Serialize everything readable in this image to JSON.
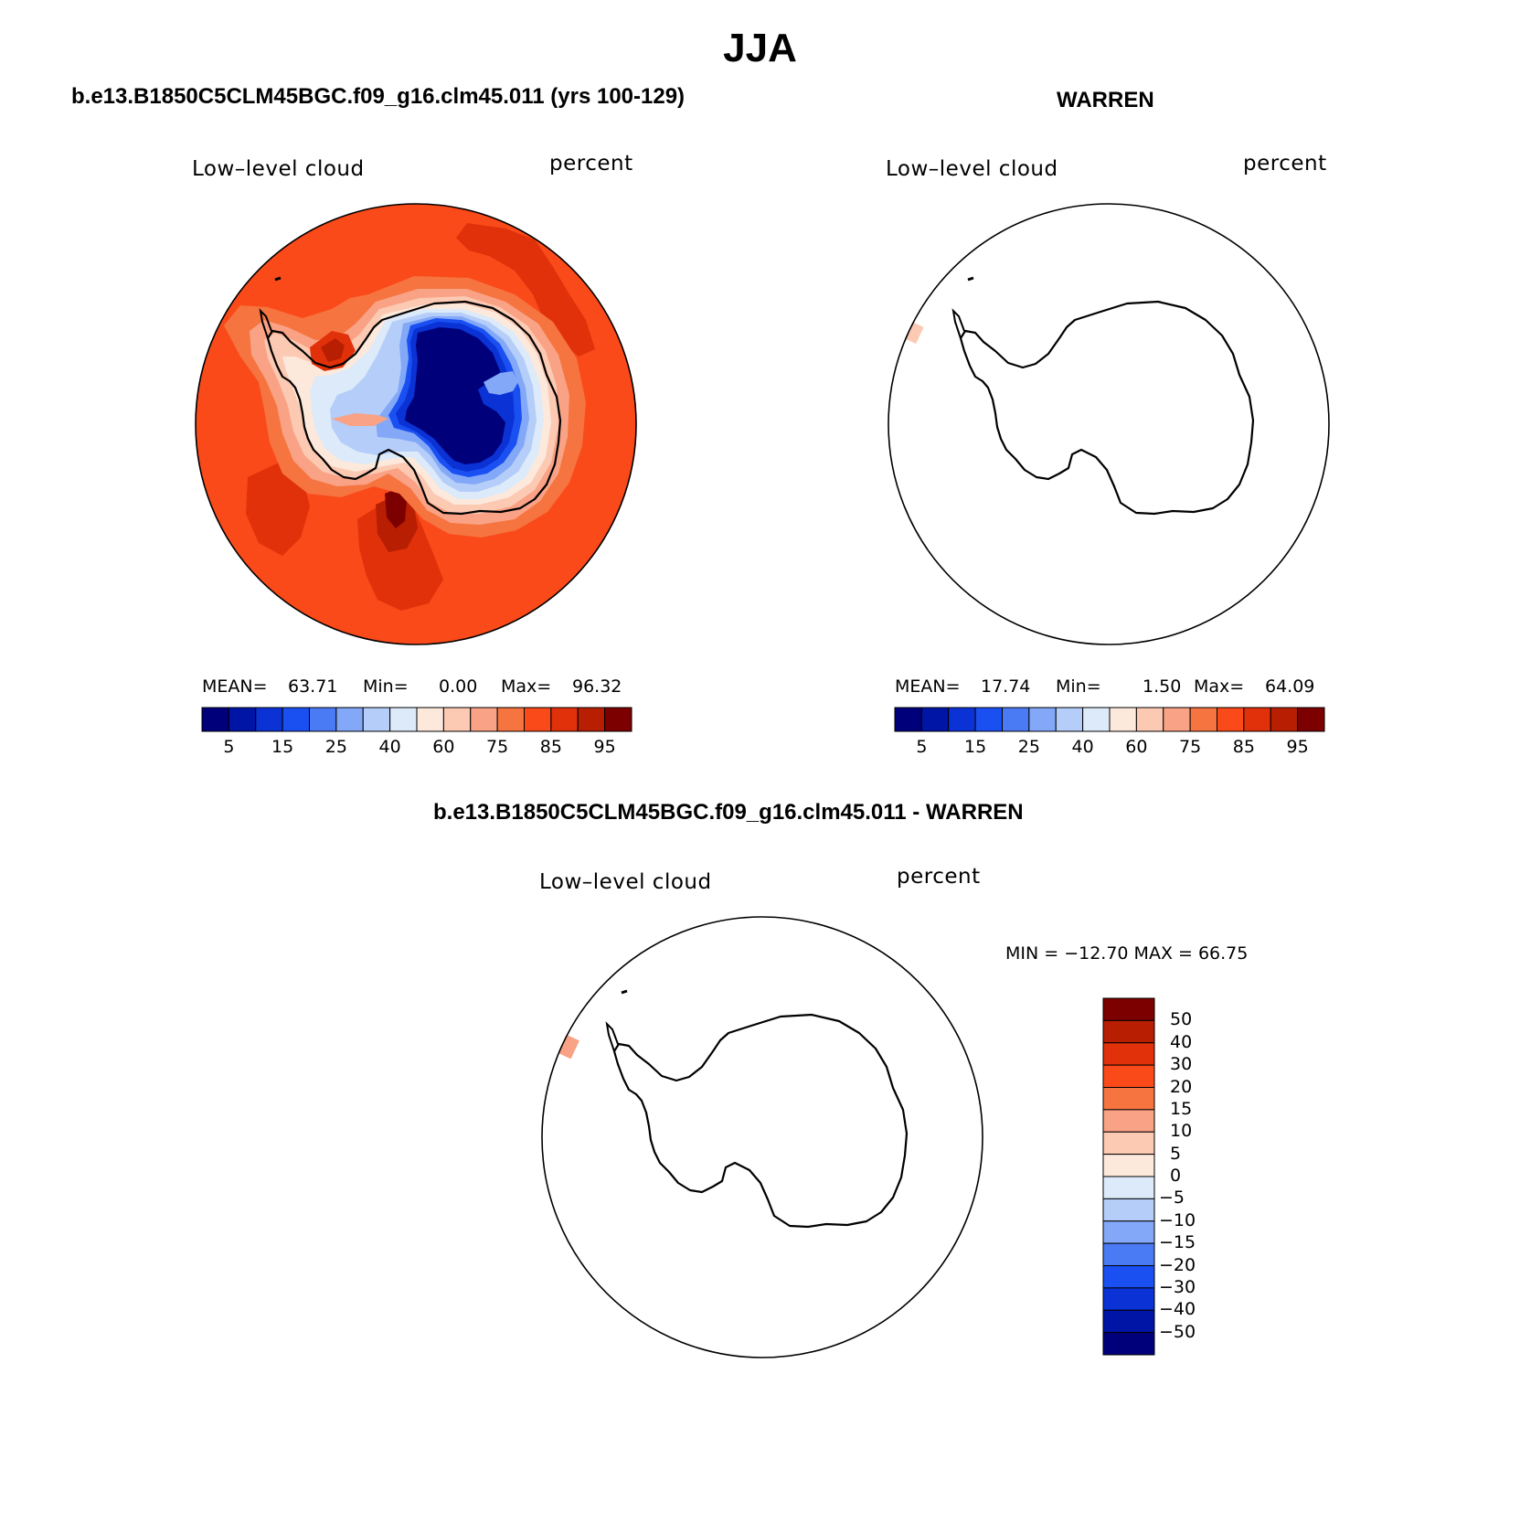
{
  "figure": {
    "title": "JJA",
    "panel1_title": "b.e13.B1850C5CLM45BGC.f09_g16.clm45.011 (yrs 100-129)",
    "panel2_title": "WARREN",
    "panel3_title": "b.e13.B1850C5CLM45BGC.f09_g16.clm45.011 - WARREN"
  },
  "panels": [
    {
      "variable": "Low–level cloud",
      "units": "percent",
      "mean_label": "MEAN=",
      "mean": "63.71",
      "min_label": "Min=",
      "min": "0.00",
      "max_label": "Max=",
      "max": "96.32"
    },
    {
      "variable": "Low–level cloud",
      "units": "percent",
      "mean_label": "MEAN=",
      "mean": "17.74",
      "min_label": "Min=",
      "min": "1.50",
      "max_label": "Max=",
      "max": "64.09"
    },
    {
      "variable": "Low–level cloud",
      "units": "percent",
      "minmax_text": "MIN = −12.70 MAX =   66.75"
    }
  ],
  "colorbar_abs": {
    "colors": [
      "#00007a",
      "#0014a6",
      "#0a32d4",
      "#1a4ff2",
      "#4a7bf5",
      "#82a8f7",
      "#b5cdf9",
      "#dceaf9",
      "#fde9dc",
      "#fcc9b3",
      "#f9a285",
      "#f6743f",
      "#fa4a1a",
      "#e0310a",
      "#b81e02",
      "#7d0000"
    ],
    "labels": [
      "5",
      "15",
      "25",
      "40",
      "60",
      "75",
      "85",
      "95"
    ]
  },
  "colorbar_diff": {
    "colors_top_to_bottom": [
      "#7d0000",
      "#b81e02",
      "#e0310a",
      "#fa4a1a",
      "#f6743f",
      "#f9a285",
      "#fcc9b3",
      "#fde9dc",
      "#dceaf9",
      "#b5cdf9",
      "#82a8f7",
      "#4a7bf5",
      "#1a4ff2",
      "#0a32d4",
      "#0014a6",
      "#00007a"
    ],
    "labels": [
      "50",
      "40",
      "30",
      "20",
      "15",
      "10",
      "5",
      "0",
      "−5",
      "−10",
      "−15",
      "−20",
      "−30",
      "−40",
      "−50"
    ]
  },
  "map_colors": {
    "ocean": "#fa4a1a",
    "ring": "#f6743f",
    "coast": "#f9a285",
    "near": "#fcc9b3",
    "pale": "#fde9dc",
    "ice_light": "#dceaf9",
    "ice_mid": "#b5cdf9",
    "ice_blue": "#82a8f7",
    "plateau_edge": "#1a4ff2",
    "plateau_mid": "#0a32d4",
    "plateau": "#00007a",
    "high": "#e0310a",
    "higher": "#b81e02",
    "peak": "#7d0000"
  }
}
